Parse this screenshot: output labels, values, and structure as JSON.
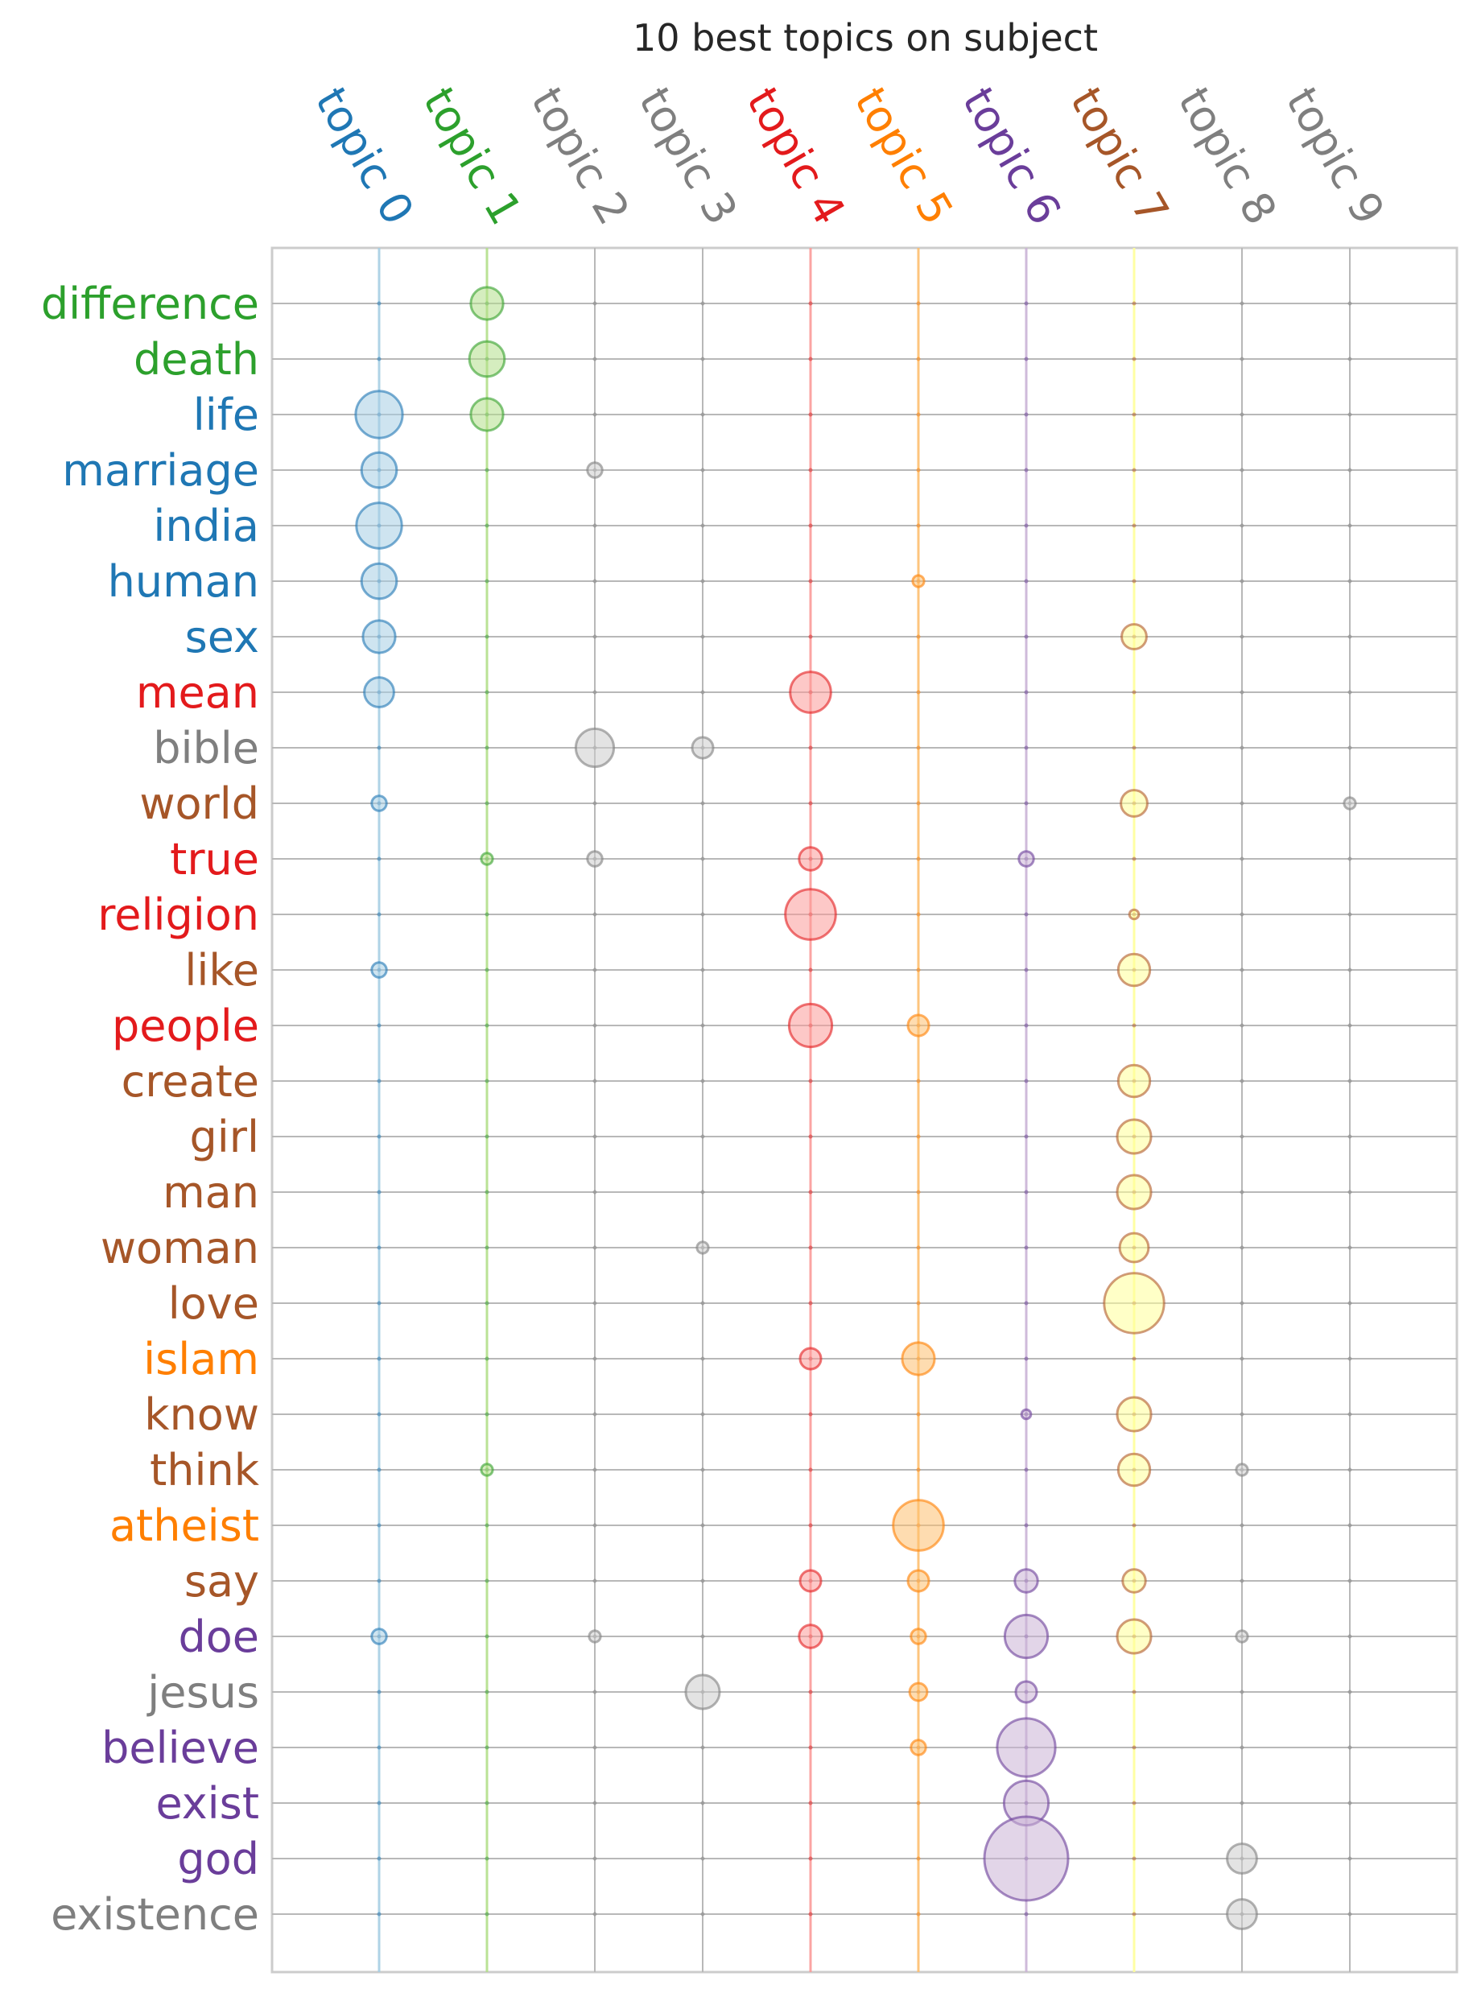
{
  "chart_data": {
    "type": "scatter",
    "subtype": "bubble-matrix",
    "title": "10 best topics on subject",
    "topics": [
      {
        "label": "topic 0",
        "color": "#1f77b4"
      },
      {
        "label": "topic 1",
        "color": "#2ca02c"
      },
      {
        "label": "topic 2",
        "color": "#7f7f7f"
      },
      {
        "label": "topic 3",
        "color": "#7f7f7f"
      },
      {
        "label": "topic 4",
        "color": "#e31a1c"
      },
      {
        "label": "topic 5",
        "color": "#ff7f00"
      },
      {
        "label": "topic 6",
        "color": "#6a3d9a"
      },
      {
        "label": "topic 7",
        "color": "#a65628"
      },
      {
        "label": "topic 8",
        "color": "#7f7f7f"
      },
      {
        "label": "topic 9",
        "color": "#7f7f7f"
      }
    ],
    "bubble_fill_colors": [
      "#a6cee3",
      "#b2df8a",
      "#cccccc",
      "#cccccc",
      "#fb9a99",
      "#fdbf6f",
      "#cab2d6",
      "#ffff99",
      "#cccccc",
      "#cccccc"
    ],
    "bubble_edge_colors": [
      "#1f77b4",
      "#33a02c",
      "#7f7f7f",
      "#7f7f7f",
      "#e31a1c",
      "#ff7f00",
      "#6a3d9a",
      "#b15928",
      "#7f7f7f",
      "#7f7f7f"
    ],
    "words": [
      {
        "label": "difference",
        "topic": 1,
        "weights": [
          0,
          0.24,
          0,
          0,
          0,
          0,
          0,
          0,
          0,
          0
        ]
      },
      {
        "label": "death",
        "topic": 1,
        "weights": [
          0,
          0.28,
          0,
          0,
          0,
          0,
          0,
          0,
          0,
          0
        ]
      },
      {
        "label": "life",
        "topic": 0,
        "weights": [
          0.5,
          0.24,
          0,
          0,
          0,
          0,
          0,
          0,
          0,
          0
        ]
      },
      {
        "label": "marriage",
        "topic": 0,
        "weights": [
          0.28,
          0,
          0.05,
          0,
          0,
          0,
          0,
          0,
          0,
          0
        ]
      },
      {
        "label": "india",
        "topic": 0,
        "weights": [
          0.47,
          0,
          0,
          0,
          0,
          0,
          0,
          0,
          0,
          0
        ]
      },
      {
        "label": "human",
        "topic": 0,
        "weights": [
          0.28,
          0,
          0,
          0,
          0,
          0.03,
          0,
          0,
          0,
          0
        ]
      },
      {
        "label": "sex",
        "topic": 0,
        "weights": [
          0.24,
          0,
          0,
          0,
          0,
          0,
          0,
          0.14,
          0,
          0
        ]
      },
      {
        "label": "mean",
        "topic": 4,
        "weights": [
          0.2,
          0,
          0,
          0,
          0.38,
          0,
          0,
          0,
          0,
          0
        ]
      },
      {
        "label": "bible",
        "topic": 2,
        "weights": [
          0,
          0,
          0.33,
          0.1,
          0,
          0,
          0,
          0,
          0,
          0
        ]
      },
      {
        "label": "world",
        "topic": 7,
        "weights": [
          0.05,
          0,
          0,
          0,
          0,
          0,
          0,
          0.16,
          0,
          0.03
        ]
      },
      {
        "label": "true",
        "topic": 4,
        "weights": [
          0,
          0.03,
          0.05,
          0,
          0.12,
          0,
          0.05,
          0,
          0,
          0
        ]
      },
      {
        "label": "religion",
        "topic": 4,
        "weights": [
          0,
          0,
          0,
          0,
          0.58,
          0,
          0,
          0.02,
          0,
          0
        ]
      },
      {
        "label": "like",
        "topic": 7,
        "weights": [
          0.05,
          0,
          0,
          0,
          0,
          0,
          0,
          0.23,
          0,
          0
        ]
      },
      {
        "label": "people",
        "topic": 4,
        "weights": [
          0,
          0,
          0,
          0,
          0.42,
          0.1,
          0,
          0,
          0,
          0
        ]
      },
      {
        "label": "create",
        "topic": 7,
        "weights": [
          0,
          0,
          0,
          0,
          0,
          0,
          0,
          0.23,
          0,
          0
        ]
      },
      {
        "label": "girl",
        "topic": 7,
        "weights": [
          0,
          0,
          0,
          0,
          0,
          0,
          0,
          0.26,
          0,
          0
        ]
      },
      {
        "label": "man",
        "topic": 7,
        "weights": [
          0,
          0,
          0,
          0,
          0,
          0,
          0,
          0.26,
          0,
          0
        ]
      },
      {
        "label": "woman",
        "topic": 7,
        "weights": [
          0,
          0,
          0.0,
          0.03,
          0,
          0,
          0,
          0.19,
          0,
          0
        ]
      },
      {
        "label": "love",
        "topic": 7,
        "weights": [
          0,
          0,
          0,
          0,
          0,
          0,
          0,
          0.82,
          0,
          0
        ]
      },
      {
        "label": "islam",
        "topic": 5,
        "weights": [
          0,
          0,
          0,
          0,
          0.1,
          0.24,
          0,
          0,
          0,
          0
        ]
      },
      {
        "label": "know",
        "topic": 7,
        "weights": [
          0,
          0,
          0,
          0,
          0,
          0,
          0.02,
          0.26,
          0,
          0
        ]
      },
      {
        "label": "think",
        "topic": 7,
        "weights": [
          0,
          0.03,
          0,
          0,
          0,
          0,
          0,
          0.23,
          0.03,
          0
        ]
      },
      {
        "label": "atheist",
        "topic": 5,
        "weights": [
          0,
          0,
          0,
          0,
          0,
          0.58,
          0,
          0,
          0,
          0
        ]
      },
      {
        "label": "say",
        "topic": 7,
        "weights": [
          0,
          0,
          0,
          0,
          0.1,
          0.1,
          0.12,
          0.12,
          0,
          0
        ]
      },
      {
        "label": "doe",
        "topic": 6,
        "weights": [
          0.05,
          0,
          0.03,
          0,
          0.12,
          0.05,
          0.42,
          0.26,
          0.03,
          0
        ]
      },
      {
        "label": "jesus",
        "topic": 2,
        "weights": [
          0,
          0,
          0,
          0.26,
          0,
          0.07,
          0.1,
          0,
          0,
          0
        ]
      },
      {
        "label": "believe",
        "topic": 6,
        "weights": [
          0,
          0,
          0,
          0,
          0,
          0.05,
          0.77,
          0,
          0,
          0
        ]
      },
      {
        "label": "exist",
        "topic": 6,
        "weights": [
          0,
          0,
          0,
          0,
          0,
          0,
          0.45,
          0,
          0,
          0
        ]
      },
      {
        "label": "god",
        "topic": 6,
        "weights": [
          0,
          0,
          0,
          0,
          0,
          0,
          1.6,
          0,
          0.2,
          0
        ]
      },
      {
        "label": "existence",
        "topic": 2,
        "weights": [
          0,
          0,
          0,
          0,
          0,
          0,
          0,
          0,
          0.2,
          0
        ]
      }
    ],
    "grid": true,
    "legend": "none",
    "xlabel": "",
    "ylabel": ""
  }
}
